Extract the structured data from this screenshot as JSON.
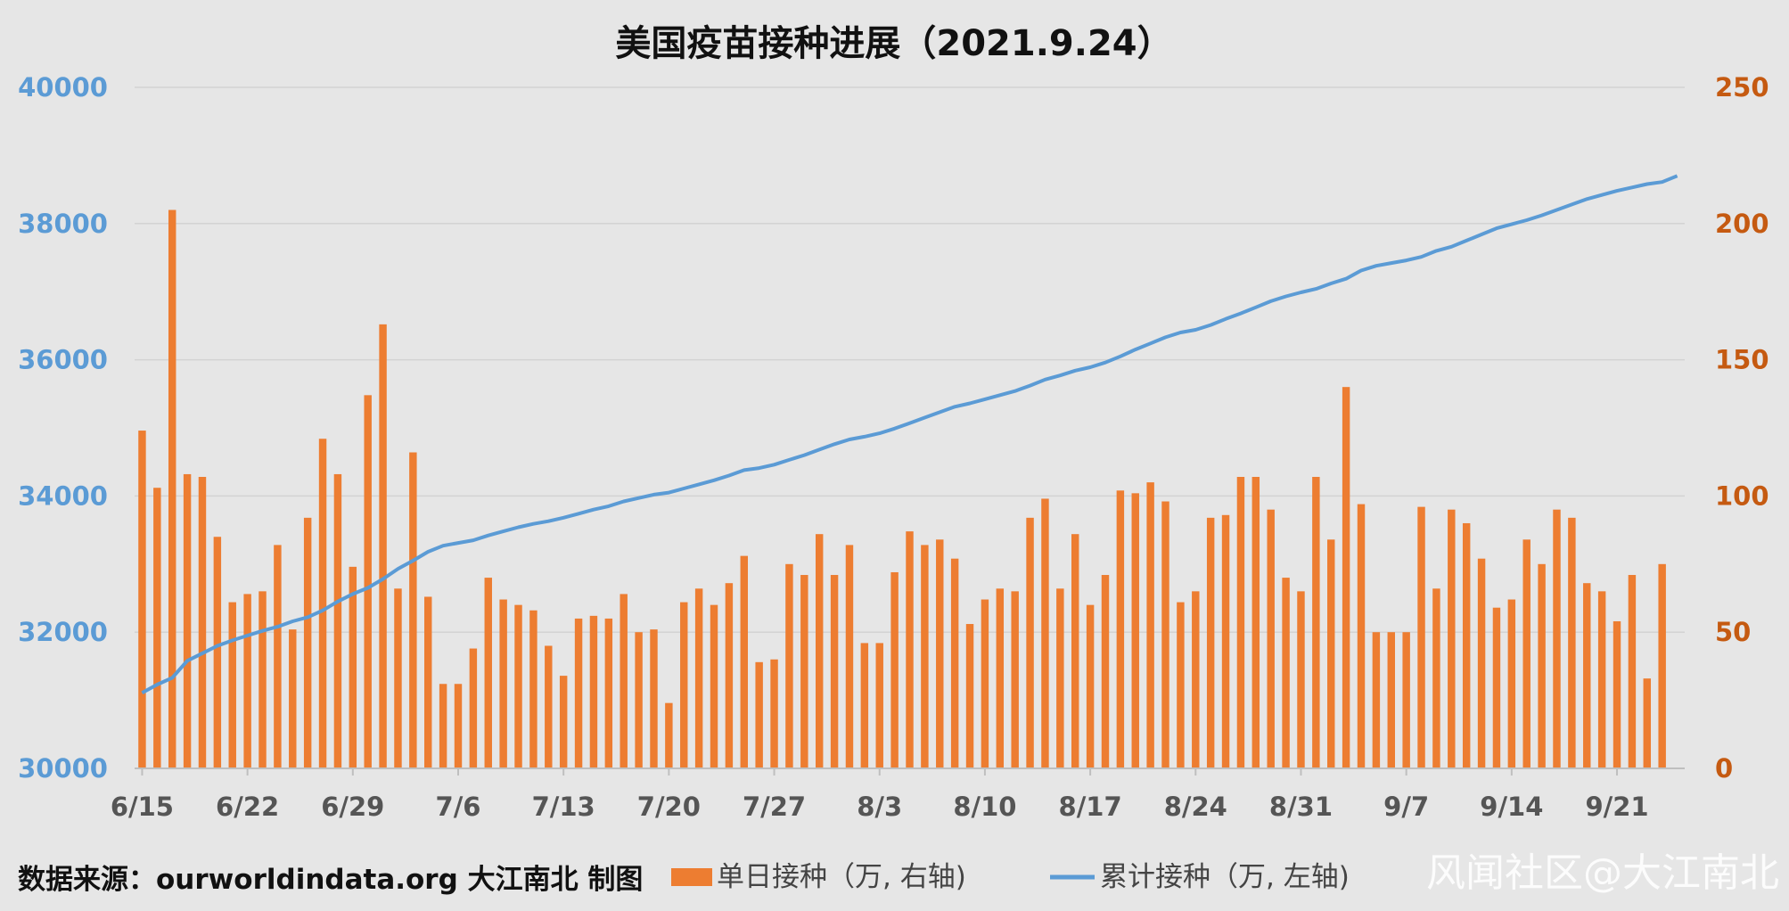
{
  "chart_data": {
    "type": "bar+line",
    "title": "美国疫苗接种进展（2021.9.24）",
    "source": "数据来源：ourworldindata.org 大江南北 制图",
    "watermark": "风闻社区@大江南北",
    "left_axis": {
      "ylim": [
        30000,
        40000
      ],
      "ticks": [
        "30000",
        "32000",
        "34000",
        "36000",
        "38000",
        "40000"
      ],
      "color": "#5b9bd5"
    },
    "right_axis": {
      "ylim": [
        0,
        250
      ],
      "ticks": [
        "0",
        "50",
        "100",
        "150",
        "200",
        "250"
      ],
      "color": "#c55a11"
    },
    "x_ticks": [
      {
        "i": 0,
        "label": "6/15"
      },
      {
        "i": 7,
        "label": "6/22"
      },
      {
        "i": 14,
        "label": "6/29"
      },
      {
        "i": 21,
        "label": "7/6"
      },
      {
        "i": 28,
        "label": "7/13"
      },
      {
        "i": 35,
        "label": "7/20"
      },
      {
        "i": 42,
        "label": "7/27"
      },
      {
        "i": 49,
        "label": "8/3"
      },
      {
        "i": 56,
        "label": "8/10"
      },
      {
        "i": 63,
        "label": "8/17"
      },
      {
        "i": 70,
        "label": "8/24"
      },
      {
        "i": 77,
        "label": "8/31"
      },
      {
        "i": 84,
        "label": "9/7"
      },
      {
        "i": 91,
        "label": "9/14"
      },
      {
        "i": 98,
        "label": "9/21"
      }
    ],
    "grid": true,
    "bar_series": {
      "name": "单日接种（万, 右轴)",
      "color": "#ed7d31",
      "values": [
        124,
        103,
        205,
        108,
        107,
        85,
        61,
        64,
        65,
        82,
        51,
        92,
        121,
        108,
        74,
        137,
        163,
        66,
        116,
        63,
        31,
        31,
        44,
        70,
        62,
        60,
        58,
        45,
        34,
        55,
        56,
        55,
        64,
        50,
        51,
        24,
        61,
        66,
        60,
        68,
        78,
        39,
        40,
        75,
        71,
        86,
        71,
        82,
        46,
        46,
        72,
        87,
        82,
        84,
        77,
        53,
        62,
        66,
        65,
        92,
        99,
        66,
        86,
        60,
        71,
        102,
        101,
        105,
        98,
        61,
        65,
        92,
        93,
        107,
        107,
        95,
        70,
        65,
        107,
        84,
        140,
        97,
        50,
        50,
        50,
        96,
        66,
        95,
        90,
        77,
        59,
        62,
        84,
        75,
        95,
        92,
        68,
        65,
        54,
        71,
        33,
        75
      ]
    },
    "line_series": {
      "name": "累计接种（万, 左轴)",
      "color": "#5b9bd5",
      "values": [
        31110,
        31230,
        31330,
        31580,
        31690,
        31800,
        31880,
        31950,
        32020,
        32080,
        32160,
        32220,
        32320,
        32450,
        32560,
        32650,
        32780,
        32930,
        33050,
        33180,
        33270,
        33310,
        33350,
        33420,
        33480,
        33540,
        33590,
        33630,
        33680,
        33740,
        33800,
        33850,
        33920,
        33970,
        34020,
        34050,
        34110,
        34170,
        34230,
        34300,
        34380,
        34410,
        34460,
        34530,
        34600,
        34680,
        34760,
        34830,
        34870,
        34920,
        34990,
        35070,
        35150,
        35230,
        35310,
        35360,
        35420,
        35480,
        35540,
        35620,
        35710,
        35770,
        35840,
        35890,
        35960,
        36050,
        36150,
        36240,
        36330,
        36400,
        36440,
        36510,
        36600,
        36680,
        36770,
        36860,
        36930,
        36990,
        37040,
        37120,
        37190,
        37310,
        37380,
        37420,
        37460,
        37510,
        37600,
        37660,
        37750,
        37840,
        37930,
        37990,
        38050,
        38120,
        38200,
        38280,
        38360,
        38420,
        38480,
        38530,
        38580,
        38610,
        38700
      ]
    },
    "legend": {
      "placement": "bottom"
    }
  }
}
